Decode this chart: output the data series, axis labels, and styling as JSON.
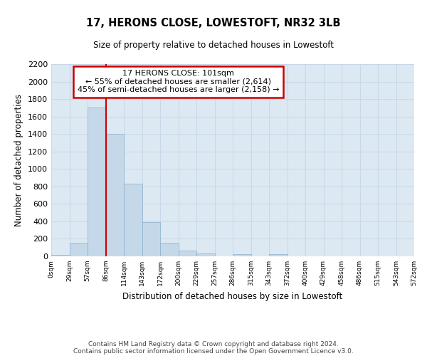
{
  "title": "17, HERONS CLOSE, LOWESTOFT, NR32 3LB",
  "subtitle": "Size of property relative to detached houses in Lowestoft",
  "xlabel": "Distribution of detached houses by size in Lowestoft",
  "ylabel": "Number of detached properties",
  "bin_labels": [
    "0sqm",
    "29sqm",
    "57sqm",
    "86sqm",
    "114sqm",
    "143sqm",
    "172sqm",
    "200sqm",
    "229sqm",
    "257sqm",
    "286sqm",
    "315sqm",
    "343sqm",
    "372sqm",
    "400sqm",
    "429sqm",
    "458sqm",
    "486sqm",
    "515sqm",
    "543sqm",
    "572sqm"
  ],
  "bar_values": [
    20,
    155,
    1700,
    1400,
    830,
    390,
    155,
    65,
    30,
    0,
    25,
    0,
    25,
    0,
    0,
    0,
    0,
    0,
    0,
    0
  ],
  "bar_color": "#c5d8ea",
  "bar_edge_color": "#8ab0cc",
  "vline_x": 3,
  "vline_color": "#cc0000",
  "annotation_line1": "17 HERONS CLOSE: 101sqm",
  "annotation_line2": "← 55% of detached houses are smaller (2,614)",
  "annotation_line3": "45% of semi-detached houses are larger (2,158) →",
  "annotation_box_edgecolor": "#cc0000",
  "annotation_box_facecolor": "#ffffff",
  "ylim": [
    0,
    2200
  ],
  "yticks": [
    0,
    200,
    400,
    600,
    800,
    1000,
    1200,
    1400,
    1600,
    1800,
    2000,
    2200
  ],
  "grid_color": "#c8d8e8",
  "footer_line1": "Contains HM Land Registry data © Crown copyright and database right 2024.",
  "footer_line2": "Contains public sector information licensed under the Open Government Licence v3.0.",
  "bg_color": "#ffffff",
  "plot_bg_color": "#dce8f2"
}
